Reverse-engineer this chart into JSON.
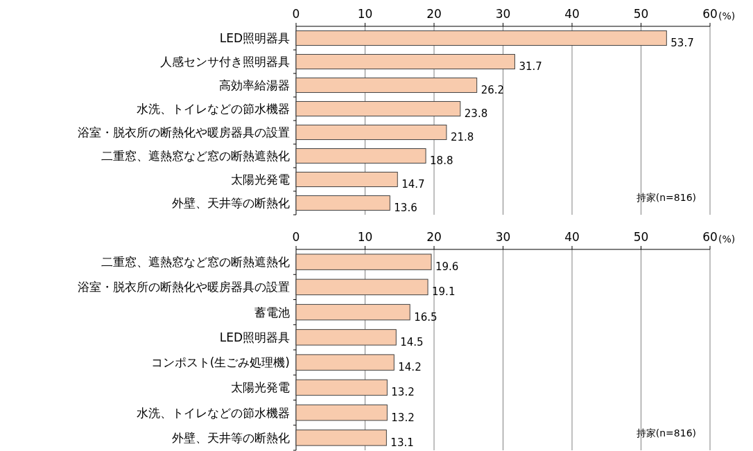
{
  "chart_data": [
    {
      "type": "bar",
      "orientation": "horizontal",
      "categories": [
        "LED照明器具",
        "人感センサ付き照明器具",
        "高効率給湯器",
        "水洗、トイレなどの節水機器",
        "浴室・脱衣所の断熱化や暖房器具の設置",
        "二重窓、遮熱窓など窓の断熱遮熱化",
        "太陽光発電",
        "外壁、天井等の断熱化"
      ],
      "values": [
        53.7,
        31.7,
        26.2,
        23.8,
        21.8,
        18.8,
        14.7,
        13.6
      ],
      "color": "#f8cbad",
      "xlim": [
        0,
        60
      ],
      "xticks": [
        0,
        10,
        20,
        30,
        40,
        50,
        60
      ],
      "xlabel": "(%)",
      "grid": "x",
      "data_labels": true,
      "annotations": [
        "持家(n=816)"
      ]
    },
    {
      "type": "bar",
      "orientation": "horizontal",
      "categories": [
        "二重窓、遮熱窓など窓の断熱遮熱化",
        "浴室・脱衣所の断熱化や暖房器具の設置",
        "蓄電池",
        "LED照明器具",
        "コンポスト(生ごみ処理機)",
        "太陽光発電",
        "水洗、トイレなどの節水機器",
        "外壁、天井等の断熱化"
      ],
      "values": [
        19.6,
        19.1,
        16.5,
        14.5,
        14.2,
        13.2,
        13.2,
        13.1
      ],
      "color": "#f8cbad",
      "xlim": [
        0,
        60
      ],
      "xticks": [
        0,
        10,
        20,
        30,
        40,
        50,
        60
      ],
      "xlabel": "(%)",
      "grid": "x",
      "data_labels": true,
      "annotations": [
        "持家(n=816)"
      ]
    }
  ]
}
